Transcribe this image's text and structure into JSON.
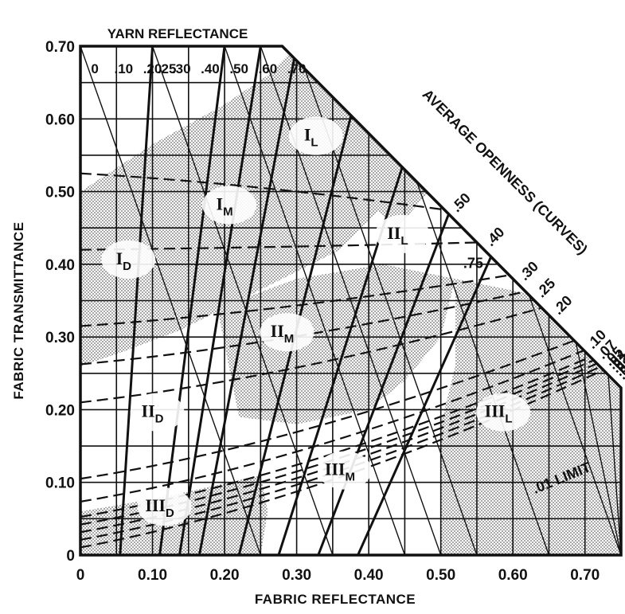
{
  "chart_data": {
    "type": "line",
    "title": "",
    "xlabel": "FABRIC REFLECTANCE",
    "ylabel": "FABRIC TRANSMITTANCE",
    "top_axis_label": "YARN REFLECTANCE",
    "diagonal_label": "AVERAGE OPENNESS (CURVES)",
    "xlim": [
      0,
      0.75
    ],
    "ylim": [
      0,
      0.7
    ],
    "x_ticks": [
      "0",
      "0.10",
      "0.20",
      "0.30",
      "0.40",
      "0.50",
      "0.60",
      "0.70"
    ],
    "x_tick_values": [
      0,
      0.1,
      0.2,
      0.3,
      0.4,
      0.5,
      0.6,
      0.7
    ],
    "y_ticks": [
      "0",
      "0.10",
      "0.20",
      "0.30",
      "0.40",
      "0.50",
      "0.60",
      "0.70"
    ],
    "y_tick_values": [
      0,
      0.1,
      0.2,
      0.3,
      0.4,
      0.5,
      0.6,
      0.7
    ],
    "grid": true,
    "boundary": [
      [
        0,
        0
      ],
      [
        0,
        0.7
      ],
      [
        0.28,
        0.7
      ],
      [
        0.73,
        0.25
      ],
      [
        0.75,
        0.23
      ],
      [
        0.75,
        0
      ]
    ],
    "yarn_reflectance": {
      "labels": [
        "0",
        ".10",
        ".20",
        ".25",
        ".30",
        ".40",
        ".50",
        ".60",
        ".70"
      ],
      "values": [
        0,
        0.1,
        0.2,
        0.25,
        0.3,
        0.4,
        0.5,
        0.6,
        0.7
      ]
    },
    "openness_curves": {
      "labels": [
        ".50",
        ".40",
        ".30",
        ".25",
        ".20",
        ".10",
        ".07",
        ".05",
        ".04",
        ".03",
        ".02",
        ".01"
      ],
      "values": [
        0.5,
        0.4,
        0.3,
        0.25,
        0.2,
        0.1,
        0.07,
        0.05,
        0.04,
        0.03,
        0.02,
        0.01
      ]
    },
    "annotations": [
      {
        "text": ".75",
        "x": 0.545,
        "y": 0.395
      },
      {
        "text": ".01 LIMIT",
        "x": 0.67,
        "y": 0.1
      }
    ],
    "regions": [
      {
        "main": "I",
        "sub": "L",
        "x": 0.32,
        "y": 0.57
      },
      {
        "main": "I",
        "sub": "M",
        "x": 0.2,
        "y": 0.475
      },
      {
        "main": "I",
        "sub": "D",
        "x": 0.06,
        "y": 0.4
      },
      {
        "main": "II",
        "sub": "L",
        "x": 0.44,
        "y": 0.435
      },
      {
        "main": "II",
        "sub": "M",
        "x": 0.28,
        "y": 0.3
      },
      {
        "main": "II",
        "sub": "D",
        "x": 0.1,
        "y": 0.19
      },
      {
        "main": "III",
        "sub": "L",
        "x": 0.58,
        "y": 0.19
      },
      {
        "main": "III",
        "sub": "M",
        "x": 0.36,
        "y": 0.11
      },
      {
        "main": "III",
        "sub": "D",
        "x": 0.11,
        "y": 0.06
      }
    ],
    "colors": {
      "ink": "#111111",
      "shade": "#b9b9b9",
      "background": "#ffffff"
    }
  }
}
